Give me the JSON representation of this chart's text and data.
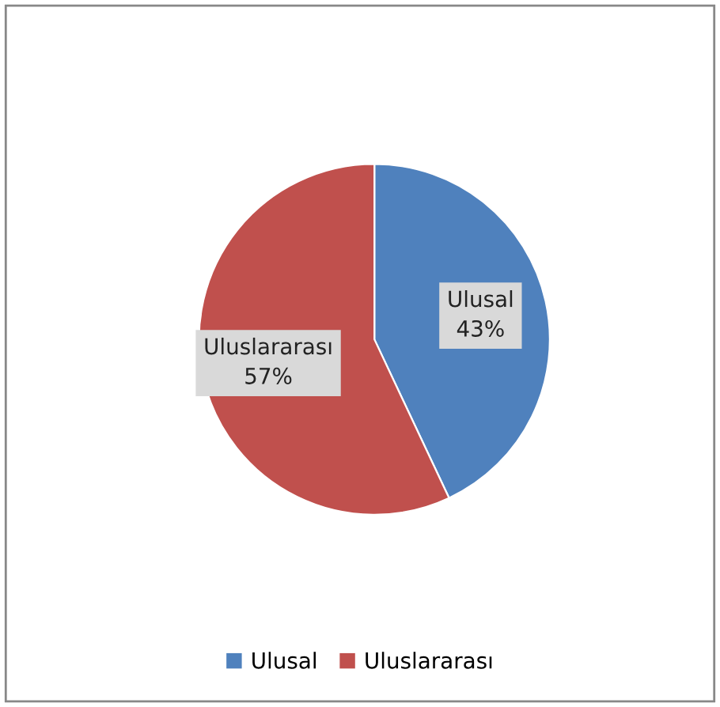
{
  "chart_data": {
    "type": "pie",
    "categories": [
      "Ulusal",
      "Uluslararası"
    ],
    "values": [
      43,
      57
    ],
    "colors": [
      "#4f81bd",
      "#c0504d"
    ],
    "value_labels": [
      "43%",
      "57%"
    ],
    "legend": "bottom"
  }
}
